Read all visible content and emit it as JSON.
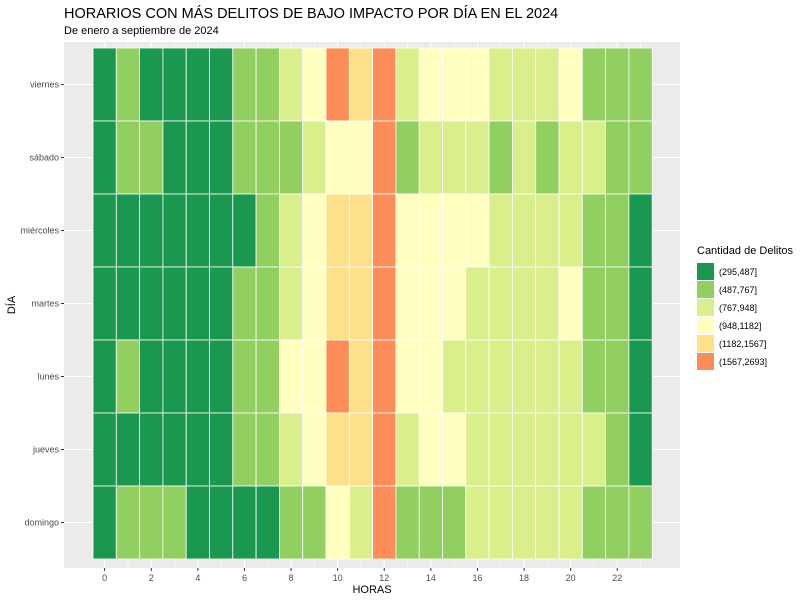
{
  "chart_data": {
    "type": "heatmap",
    "title": "HORARIOS CON MÁS DELITOS DE BAJO IMPACTO POR DÍA EN EL 2024",
    "subtitle": "De enero a septiembre de 2024",
    "xlabel": "HORAS",
    "ylabel": "DÍA",
    "x": [
      0,
      1,
      2,
      3,
      4,
      5,
      6,
      7,
      8,
      9,
      10,
      11,
      12,
      13,
      14,
      15,
      16,
      17,
      18,
      19,
      20,
      21,
      22,
      23
    ],
    "x_ticks": [
      "0",
      "2",
      "4",
      "6",
      "8",
      "10",
      "12",
      "14",
      "16",
      "18",
      "20",
      "22"
    ],
    "y": [
      "viernes",
      "sábado",
      "miércoles",
      "martes",
      "lunes",
      "jueves",
      "domingo"
    ],
    "legend": {
      "title": "Cantidad de Delitos",
      "position": "right",
      "bins": [
        {
          "label": "(295,487]",
          "color": "#1a9850"
        },
        {
          "label": "(487,767]",
          "color": "#91cf60"
        },
        {
          "label": "(767,948]",
          "color": "#d9ef8b"
        },
        {
          "label": "(948,1182]",
          "color": "#ffffbf"
        },
        {
          "label": "(1182,1567]",
          "color": "#fee08b"
        },
        {
          "label": "(1567,2693]",
          "color": "#fc8d59"
        }
      ]
    },
    "cells": [
      [
        0,
        1,
        0,
        0,
        0,
        0,
        1,
        1,
        2,
        3,
        5,
        4,
        5,
        2,
        3,
        3,
        3,
        2,
        2,
        2,
        3,
        1,
        1,
        1
      ],
      [
        0,
        1,
        1,
        0,
        0,
        0,
        1,
        1,
        1,
        2,
        3,
        3,
        5,
        1,
        2,
        2,
        2,
        1,
        2,
        1,
        2,
        2,
        1,
        1
      ],
      [
        0,
        0,
        0,
        0,
        0,
        0,
        0,
        1,
        2,
        3,
        4,
        4,
        5,
        3,
        3,
        3,
        3,
        2,
        2,
        2,
        2,
        1,
        1,
        0
      ],
      [
        0,
        0,
        0,
        0,
        0,
        0,
        1,
        1,
        2,
        3,
        4,
        4,
        5,
        3,
        3,
        3,
        2,
        2,
        2,
        2,
        3,
        1,
        1,
        0
      ],
      [
        0,
        1,
        0,
        0,
        0,
        0,
        1,
        1,
        3,
        3,
        5,
        4,
        5,
        3,
        3,
        2,
        2,
        2,
        2,
        2,
        2,
        1,
        1,
        0
      ],
      [
        0,
        0,
        0,
        0,
        0,
        0,
        1,
        1,
        2,
        3,
        4,
        4,
        5,
        2,
        3,
        3,
        2,
        2,
        2,
        2,
        2,
        2,
        1,
        0
      ],
      [
        0,
        1,
        1,
        1,
        0,
        0,
        0,
        0,
        1,
        1,
        3,
        2,
        5,
        1,
        1,
        1,
        2,
        2,
        2,
        2,
        2,
        1,
        1,
        1
      ]
    ],
    "grid": true,
    "panel_background": "#ebebeb"
  }
}
